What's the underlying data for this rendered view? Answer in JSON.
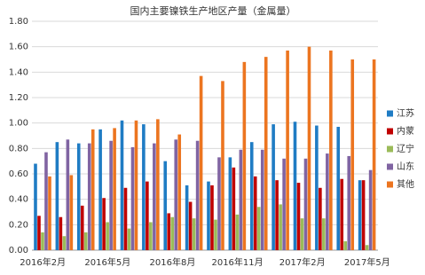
{
  "chart_data": {
    "type": "bar",
    "title": "国内主要镍铁生产地区产量（金属量）",
    "categories": [
      "2016年2月",
      null,
      null,
      "2016年5月",
      null,
      null,
      "2016年8月",
      null,
      null,
      "2016年11月",
      null,
      null,
      "2017年2月",
      null,
      null,
      "2017年5月"
    ],
    "series": [
      {
        "name": "江苏",
        "color": "#1f7cc4",
        "values": [
          0.68,
          0.85,
          0.84,
          0.95,
          1.02,
          0.99,
          0.7,
          0.51,
          0.54,
          0.73,
          0.85,
          0.99,
          1.01,
          0.98,
          0.97,
          0.55
        ]
      },
      {
        "name": "内蒙",
        "color": "#c00000",
        "values": [
          0.27,
          0.26,
          0.35,
          0.41,
          0.49,
          0.54,
          0.29,
          0.38,
          0.51,
          0.65,
          0.58,
          0.55,
          0.53,
          0.49,
          0.56,
          0.55
        ]
      },
      {
        "name": "辽宁",
        "color": "#9bbb59",
        "values": [
          0.14,
          0.11,
          0.14,
          0.22,
          0.17,
          0.22,
          0.26,
          0.25,
          0.24,
          0.28,
          0.34,
          0.36,
          0.25,
          0.25,
          0.07,
          0.04
        ]
      },
      {
        "name": "山东",
        "color": "#8064a2",
        "values": [
          0.77,
          0.87,
          0.84,
          0.86,
          0.81,
          0.84,
          0.87,
          0.86,
          0.73,
          0.79,
          0.79,
          0.72,
          0.72,
          0.76,
          0.74,
          0.63
        ]
      },
      {
        "name": "其他",
        "color": "#ec7520",
        "values": [
          0.58,
          0.59,
          0.95,
          0.96,
          1.02,
          1.03,
          0.91,
          1.37,
          1.33,
          1.48,
          1.52,
          1.57,
          1.6,
          1.57,
          1.5,
          1.5
        ]
      }
    ],
    "ylim": [
      0,
      1.8
    ],
    "yticks": [
      {
        "value": 0,
        "label": "0.00"
      },
      {
        "value": 0.2,
        "label": "0.20"
      },
      {
        "value": 0.4,
        "label": "0.40"
      },
      {
        "value": 0.6,
        "label": "0.60"
      },
      {
        "value": 0.8,
        "label": "0.80"
      },
      {
        "value": 1.0,
        "label": "1.00"
      },
      {
        "value": 1.2,
        "label": "1.20"
      },
      {
        "value": 1.4,
        "label": "1.40"
      },
      {
        "value": 1.6,
        "label": "1.60"
      },
      {
        "value": 1.8,
        "label": "1.80"
      }
    ],
    "grid": true,
    "legend": "right"
  }
}
